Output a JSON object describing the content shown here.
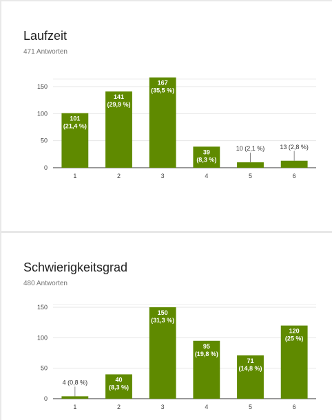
{
  "cards": [
    {
      "title": "Laufzeit",
      "subtitle": "471 Antworten",
      "chart_data": {
        "type": "bar",
        "categories": [
          "1",
          "2",
          "3",
          "4",
          "5",
          "6"
        ],
        "values": [
          101,
          141,
          167,
          39,
          10,
          13
        ],
        "labels": [
          "101 (21,4 %)",
          "141 (29,9 %)",
          "167 (35,5 %)",
          "39 (8,3 %)",
          "10 (2,1 %)",
          "13 (2,8 %)"
        ],
        "yticks": [
          0,
          50,
          100,
          150
        ],
        "ylim": [
          0,
          170
        ],
        "bar_color": "#5f8a00",
        "grid": true
      }
    },
    {
      "title": "Schwierigkeitsgrad",
      "subtitle": "480 Antworten",
      "chart_data": {
        "type": "bar",
        "categories": [
          "1",
          "2",
          "3",
          "4",
          "5",
          "6"
        ],
        "values": [
          4,
          40,
          150,
          95,
          71,
          120
        ],
        "labels": [
          "4 (0,8 %)",
          "40 (8,3 %)",
          "150 (31,3 %)",
          "95 (19,8 %)",
          "71 (14,8 %)",
          "120 (25 %)"
        ],
        "yticks": [
          0,
          50,
          100,
          150
        ],
        "ylim": [
          0,
          150
        ],
        "bar_color": "#5f8a00",
        "grid": true
      }
    }
  ]
}
